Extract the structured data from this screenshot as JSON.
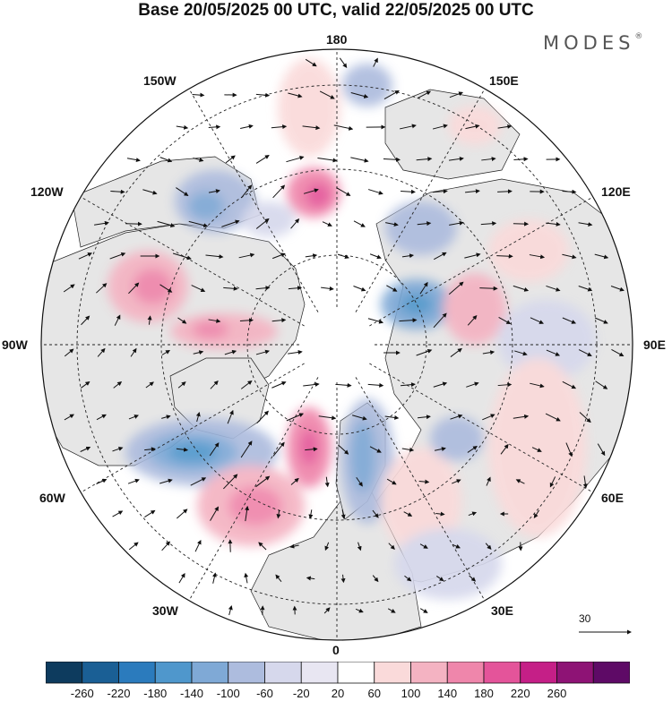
{
  "title": "Base 20/05/2025 00 UTC, valid 22/05/2025 00 UTC",
  "brand": {
    "name": "MODES",
    "mark": "®"
  },
  "longitude_labels": {
    "top": "180",
    "bottom": "0",
    "left": "90W",
    "right": "90E",
    "top_left": "150W",
    "upper_left": "120W",
    "top_right": "150E",
    "upper_right": "120E",
    "lower_left": "60W",
    "bottom_left": "30W",
    "lower_right": "60E",
    "bottom_right": "30E"
  },
  "vector_scale": {
    "label": "30"
  },
  "colorbar": {
    "ticks": [
      "-260",
      "-220",
      "-180",
      "-140",
      "-100",
      "-60",
      "-20",
      "20",
      "60",
      "100",
      "140",
      "180",
      "220",
      "260"
    ],
    "colors": [
      "#0d3b5e",
      "#1a5f95",
      "#2b7bbd",
      "#4f97cc",
      "#7fa9d6",
      "#adbcde",
      "#d6d8ec",
      "#e8e6f2",
      "#ffffff",
      "#fadada",
      "#f4b3c2",
      "#ef86ab",
      "#e4549a",
      "#c51f87",
      "#8e1375",
      "#5e0a66"
    ]
  },
  "colors": {
    "land": "#e8e8e8",
    "ocean": "#ffffff",
    "border": "#111111",
    "grid": "#111111"
  }
}
